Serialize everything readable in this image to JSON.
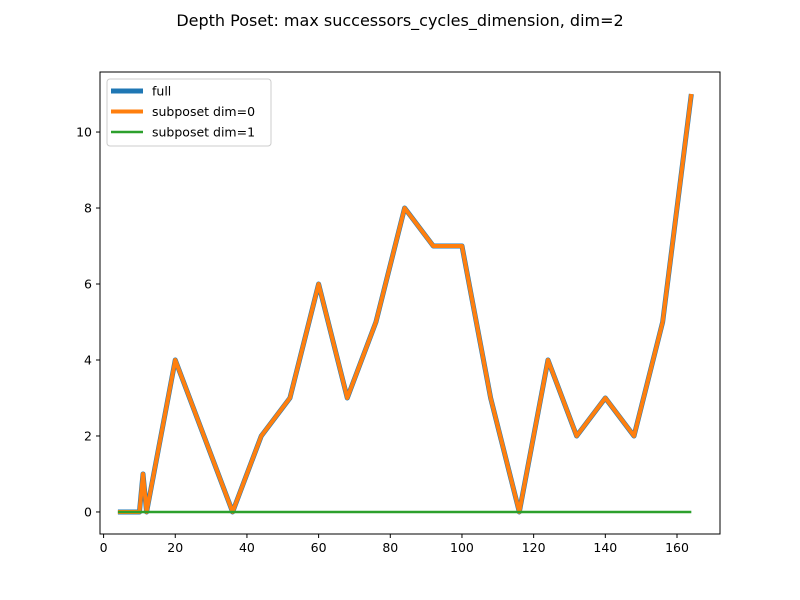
{
  "chart_data": {
    "type": "line",
    "title": "Depth Poset: max successors_cycles_dimension, dim=2",
    "xlabel": "",
    "ylabel": "",
    "xlim": [
      -1,
      172
    ],
    "ylim": [
      -0.58,
      11.58
    ],
    "xticks": [
      0,
      20,
      40,
      60,
      80,
      100,
      120,
      140,
      160
    ],
    "yticks": [
      0,
      2,
      4,
      6,
      8,
      10
    ],
    "grid": false,
    "legend": "top-left",
    "series": [
      {
        "name": "full",
        "color": "#1f77b4",
        "x": [
          4,
          10,
          11,
          12,
          20,
          28,
          36,
          44,
          52,
          60,
          68,
          76,
          84,
          92,
          100,
          108,
          116,
          124,
          132,
          140,
          148,
          156,
          164
        ],
        "y": [
          0,
          0,
          1,
          0,
          4,
          2,
          0,
          2,
          3,
          6,
          3,
          5,
          8,
          7,
          7,
          3,
          0,
          4,
          2,
          3,
          2,
          5,
          11
        ]
      },
      {
        "name": "subposet dim=0",
        "color": "#ff7f0e",
        "x": [
          4,
          10,
          11,
          12,
          20,
          28,
          36,
          44,
          52,
          60,
          68,
          76,
          84,
          92,
          100,
          108,
          116,
          124,
          132,
          140,
          148,
          156,
          164
        ],
        "y": [
          0,
          0,
          1,
          0,
          4,
          2,
          0,
          2,
          3,
          6,
          3,
          5,
          8,
          7,
          7,
          3,
          0,
          4,
          2,
          3,
          2,
          5,
          11
        ]
      },
      {
        "name": "subposet dim=1",
        "color": "#2ca02c",
        "x": [
          4,
          10,
          11,
          12,
          20,
          28,
          36,
          44,
          52,
          60,
          68,
          76,
          84,
          92,
          100,
          108,
          116,
          124,
          132,
          140,
          148,
          156,
          164
        ],
        "y": [
          0,
          0,
          0,
          0,
          0,
          0,
          0,
          0,
          0,
          0,
          0,
          0,
          0,
          0,
          0,
          0,
          0,
          0,
          0,
          0,
          0,
          0,
          0
        ]
      }
    ]
  }
}
